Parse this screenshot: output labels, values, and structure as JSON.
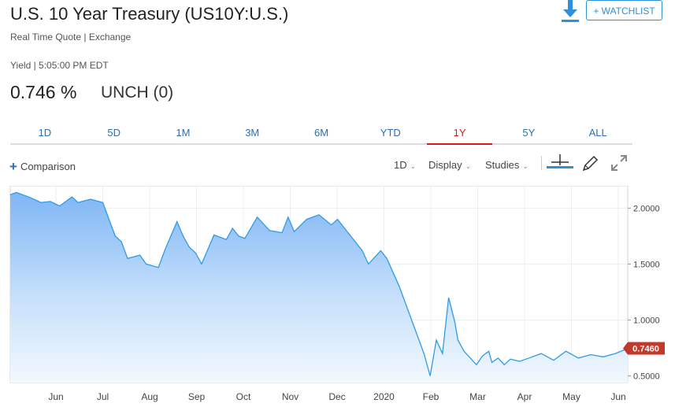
{
  "header": {
    "title": "U.S. 10 Year Treasury (US10Y:U.S.)",
    "subtitle": "Real Time Quote | Exchange",
    "watchlist_label": "+ WATCHLIST",
    "download_icon": "download-icon"
  },
  "quote": {
    "yield_label": "Yield | 5:05:00 PM EDT",
    "price": "0.746 %",
    "change": "UNCH (0)"
  },
  "tabs": [
    {
      "label": "1D"
    },
    {
      "label": "5D"
    },
    {
      "label": "1M"
    },
    {
      "label": "3M"
    },
    {
      "label": "6M"
    },
    {
      "label": "YTD"
    },
    {
      "label": "1Y",
      "active": true
    },
    {
      "label": "5Y"
    },
    {
      "label": "ALL"
    }
  ],
  "toolbar": {
    "comparison_label": "Comparison",
    "interval_label": "1D",
    "display_label": "Display",
    "studies_label": "Studies",
    "icons": [
      "crosshair-icon",
      "pencil-icon",
      "expand-icon"
    ]
  },
  "colors": {
    "accent": "#2a6fb5",
    "active_tab": "#d81b1b",
    "line": "#2f9be6",
    "badge": "#c0392b"
  },
  "chart_data": {
    "type": "area",
    "x_labels": [
      "Jun",
      "Jul",
      "Aug",
      "Sep",
      "Oct",
      "Nov",
      "Dec",
      "2020",
      "Feb",
      "Mar",
      "Apr",
      "May",
      "Jun"
    ],
    "y_ticks": [
      "2.0000",
      "1.5000",
      "1.0000",
      "0.5000"
    ],
    "ylim": [
      0.44,
      2.2
    ],
    "last_value_label": "0.7460",
    "grid": true,
    "x": [
      0,
      0.01,
      0.03,
      0.05,
      0.065,
      0.08,
      0.1,
      0.11,
      0.13,
      0.15,
      0.16,
      0.17,
      0.18,
      0.19,
      0.21,
      0.22,
      0.24,
      0.25,
      0.27,
      0.28,
      0.29,
      0.3,
      0.31,
      0.33,
      0.35,
      0.36,
      0.37,
      0.38,
      0.4,
      0.42,
      0.44,
      0.45,
      0.46,
      0.48,
      0.5,
      0.52,
      0.53,
      0.55,
      0.57,
      0.58,
      0.6,
      0.61,
      0.63,
      0.65,
      0.67,
      0.68,
      0.69,
      0.7,
      0.71,
      0.72,
      0.725,
      0.735,
      0.745,
      0.755,
      0.765,
      0.775,
      0.78,
      0.79,
      0.8,
      0.81,
      0.825,
      0.84,
      0.86,
      0.88,
      0.9,
      0.92,
      0.94,
      0.96,
      0.98,
      1.0
    ],
    "values": [
      2.12,
      2.14,
      2.1,
      2.05,
      2.06,
      2.02,
      2.1,
      2.05,
      2.08,
      2.05,
      1.9,
      1.75,
      1.7,
      1.55,
      1.58,
      1.5,
      1.47,
      1.62,
      1.88,
      1.75,
      1.65,
      1.6,
      1.5,
      1.76,
      1.72,
      1.82,
      1.75,
      1.73,
      1.92,
      1.8,
      1.78,
      1.92,
      1.79,
      1.9,
      1.94,
      1.85,
      1.9,
      1.76,
      1.62,
      1.5,
      1.62,
      1.55,
      1.3,
      1.0,
      0.7,
      0.5,
      0.82,
      0.7,
      1.2,
      0.98,
      0.82,
      0.72,
      0.66,
      0.6,
      0.68,
      0.72,
      0.62,
      0.66,
      0.6,
      0.65,
      0.63,
      0.66,
      0.7,
      0.64,
      0.72,
      0.66,
      0.69,
      0.67,
      0.7,
      0.746
    ]
  }
}
